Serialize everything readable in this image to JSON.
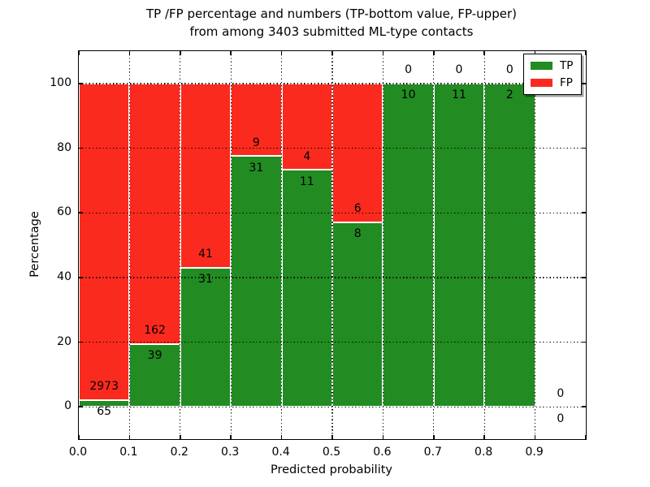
{
  "chart_data": {
    "type": "bar",
    "stacked": true,
    "unit": "percent",
    "title_lines": [
      "TP /FP percentage and numbers (TP-bottom value, FP-upper)",
      "from among 3403 submitted ML-type contacts"
    ],
    "xlabel": "Predicted probability",
    "ylabel": "Percentage",
    "xlim": [
      0.0,
      1.0
    ],
    "ylim": [
      -10,
      110
    ],
    "grid": {
      "visible": true,
      "style": "dotted",
      "axes": "both"
    },
    "x_ticks": {
      "values": [
        0.0,
        0.1,
        0.2,
        0.3,
        0.4,
        0.5,
        0.6,
        0.7,
        0.8,
        0.9,
        1.0
      ],
      "labels": [
        "0.0",
        "0.1",
        "0.2",
        "0.3",
        "0.4",
        "0.5",
        "0.6",
        "0.7",
        "0.8",
        "0.9",
        ""
      ]
    },
    "y_ticks": {
      "values": [
        0,
        20,
        40,
        60,
        80,
        100
      ],
      "labels": [
        "0",
        "20",
        "40",
        "60",
        "80",
        "100"
      ]
    },
    "categories": [
      "0.0-0.1",
      "0.1-0.2",
      "0.2-0.3",
      "0.3-0.4",
      "0.4-0.5",
      "0.5-0.6",
      "0.6-0.7",
      "0.7-0.8",
      "0.8-0.9",
      "0.9-1.0"
    ],
    "series": [
      {
        "name": "TP",
        "color": "#228B22",
        "values": [
          65,
          39,
          31,
          31,
          11,
          8,
          10,
          11,
          2,
          0
        ]
      },
      {
        "name": "FP",
        "color": "#FB2A1E",
        "values": [
          2973,
          162,
          41,
          9,
          4,
          6,
          0,
          0,
          0,
          0
        ]
      }
    ],
    "bins": [
      {
        "x0": 0.0,
        "x1": 0.1,
        "tp": 65,
        "fp": 2973,
        "tp_pct": 2.14,
        "fp_pct": 97.86,
        "has_bar": true
      },
      {
        "x0": 0.1,
        "x1": 0.2,
        "tp": 39,
        "fp": 162,
        "tp_pct": 19.4,
        "fp_pct": 80.6,
        "has_bar": true
      },
      {
        "x0": 0.2,
        "x1": 0.3,
        "tp": 31,
        "fp": 41,
        "tp_pct": 43.06,
        "fp_pct": 56.94,
        "has_bar": true
      },
      {
        "x0": 0.3,
        "x1": 0.4,
        "tp": 31,
        "fp": 9,
        "tp_pct": 77.5,
        "fp_pct": 22.5,
        "has_bar": true
      },
      {
        "x0": 0.4,
        "x1": 0.5,
        "tp": 11,
        "fp": 4,
        "tp_pct": 73.33,
        "fp_pct": 26.67,
        "has_bar": true
      },
      {
        "x0": 0.5,
        "x1": 0.6,
        "tp": 8,
        "fp": 6,
        "tp_pct": 57.14,
        "fp_pct": 42.86,
        "has_bar": true
      },
      {
        "x0": 0.6,
        "x1": 0.7,
        "tp": 10,
        "fp": 0,
        "tp_pct": 100,
        "fp_pct": 0,
        "has_bar": true
      },
      {
        "x0": 0.7,
        "x1": 0.8,
        "tp": 11,
        "fp": 0,
        "tp_pct": 100,
        "fp_pct": 0,
        "has_bar": true
      },
      {
        "x0": 0.8,
        "x1": 0.9,
        "tp": 2,
        "fp": 0,
        "tp_pct": 100,
        "fp_pct": 0,
        "has_bar": true
      },
      {
        "x0": 0.9,
        "x1": 1.0,
        "tp": 0,
        "fp": 0,
        "tp_pct": 0,
        "fp_pct": 0,
        "has_bar": false
      }
    ],
    "legend": {
      "position": "upper right",
      "items": [
        {
          "label": "TP",
          "color": "#228B22"
        },
        {
          "label": "FP",
          "color": "#FB2A1E"
        }
      ]
    }
  }
}
